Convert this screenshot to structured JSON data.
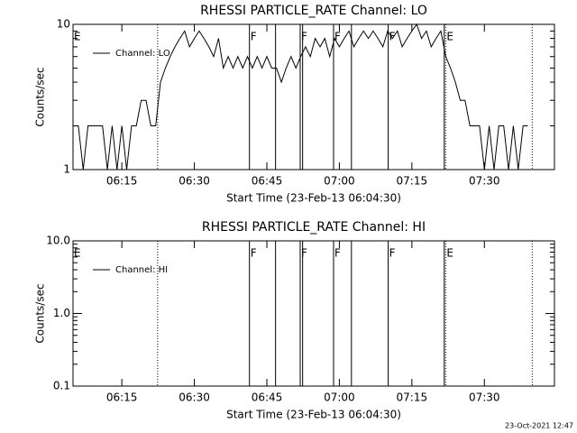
{
  "chart_data": [
    {
      "type": "line",
      "title": "RHESSI PARTICLE_RATE Channel: LO",
      "xlabel": "Start Time (23-Feb-13 06:04:30)",
      "ylabel": "Counts/sec",
      "log_y": true,
      "legend": "upper left",
      "color": "#000000",
      "xlim": [
        4.9,
        104.5
      ],
      "xticks": [
        {
          "value": 15,
          "label": "06:15"
        },
        {
          "value": 30,
          "label": "06:30"
        },
        {
          "value": 45,
          "label": "06:45"
        },
        {
          "value": 60,
          "label": "07:00"
        },
        {
          "value": 75,
          "label": "07:15"
        },
        {
          "value": 90,
          "label": "07:30"
        }
      ],
      "ylim": [
        1,
        10
      ],
      "yticks": [
        1,
        10
      ],
      "vlines": [
        {
          "x": 22.4,
          "style": "dotted"
        },
        {
          "x": 41.4,
          "style": "solid"
        },
        {
          "x": 46.8,
          "style": "solid"
        },
        {
          "x": 51.9,
          "style": "solid"
        },
        {
          "x": 52.4,
          "style": "solid"
        },
        {
          "x": 58.8,
          "style": "solid"
        },
        {
          "x": 62.5,
          "style": "solid"
        },
        {
          "x": 70.1,
          "style": "solid"
        },
        {
          "x": 81.7,
          "style": "solid"
        },
        {
          "x": 82.0,
          "style": "dotted"
        },
        {
          "x": 99.9,
          "style": "dotted"
        }
      ],
      "annotations": [
        {
          "x": 4.9,
          "text": "E"
        },
        {
          "x": 41.4,
          "text": "F"
        },
        {
          "x": 51.9,
          "text": "F"
        },
        {
          "x": 58.8,
          "text": "F"
        },
        {
          "x": 70.1,
          "text": "F"
        },
        {
          "x": 82.0,
          "text": "E"
        }
      ],
      "series": [
        {
          "name": "Channel: LO",
          "color": "#000000",
          "x": [
            5,
            6,
            7,
            8,
            9,
            10,
            11,
            12,
            13,
            14,
            15,
            16,
            17,
            18,
            19,
            20,
            21,
            22,
            23,
            24,
            25,
            26,
            27,
            28,
            29,
            30,
            31,
            32,
            33,
            34,
            35,
            36,
            37,
            38,
            39,
            40,
            41,
            42,
            43,
            44,
            45,
            46,
            47,
            48,
            49,
            50,
            51,
            52,
            53,
            54,
            55,
            56,
            57,
            58,
            59,
            60,
            61,
            62,
            63,
            64,
            65,
            66,
            67,
            68,
            69,
            70,
            71,
            72,
            73,
            74,
            75,
            76,
            77,
            78,
            79,
            80,
            81,
            82,
            83,
            84,
            85,
            86,
            87,
            88,
            89,
            90,
            91,
            92,
            93,
            94,
            95,
            96,
            97,
            98,
            99
          ],
          "values": [
            2,
            2,
            1,
            2,
            2,
            2,
            2,
            1,
            2,
            1,
            2,
            1,
            2,
            2,
            3,
            3,
            2,
            2,
            4,
            5,
            6,
            7,
            8,
            9,
            7,
            8,
            9,
            8,
            7,
            6,
            8,
            5,
            6,
            5,
            6,
            5,
            6,
            5,
            6,
            5,
            6,
            5,
            5,
            4,
            5,
            6,
            5,
            6,
            7,
            6,
            8,
            7,
            8,
            6,
            8,
            7,
            8,
            9,
            7,
            8,
            9,
            8,
            9,
            8,
            7,
            9,
            8,
            9,
            7,
            8,
            9,
            10,
            8,
            9,
            7,
            8,
            9,
            6,
            5,
            4,
            3,
            3,
            2,
            2,
            2,
            1,
            2,
            1,
            2,
            2,
            1,
            2,
            1,
            2,
            2
          ]
        }
      ]
    },
    {
      "type": "line",
      "title": "RHESSI PARTICLE_RATE Channel: HI",
      "xlabel": "Start Time (23-Feb-13 06:04:30)",
      "ylabel": "Counts/sec",
      "log_y": true,
      "legend": "upper left",
      "color": "#000000",
      "xlim": [
        4.9,
        104.5
      ],
      "xticks": [
        {
          "value": 15,
          "label": "06:15"
        },
        {
          "value": 30,
          "label": "06:30"
        },
        {
          "value": 45,
          "label": "06:45"
        },
        {
          "value": 60,
          "label": "07:00"
        },
        {
          "value": 75,
          "label": "07:15"
        },
        {
          "value": 90,
          "label": "07:30"
        }
      ],
      "ylim": [
        0.1,
        10
      ],
      "yticks": [
        0.1,
        {
          "value": 1,
          "label": "1.0"
        },
        {
          "value": 10,
          "label": "10.0"
        }
      ],
      "vlines": [
        {
          "x": 22.4,
          "style": "dotted"
        },
        {
          "x": 41.4,
          "style": "solid"
        },
        {
          "x": 46.8,
          "style": "solid"
        },
        {
          "x": 51.9,
          "style": "solid"
        },
        {
          "x": 52.4,
          "style": "solid"
        },
        {
          "x": 58.8,
          "style": "solid"
        },
        {
          "x": 62.5,
          "style": "solid"
        },
        {
          "x": 70.1,
          "style": "solid"
        },
        {
          "x": 81.7,
          "style": "solid"
        },
        {
          "x": 82.0,
          "style": "dotted"
        },
        {
          "x": 99.9,
          "style": "dotted"
        }
      ],
      "annotations": [
        {
          "x": 4.9,
          "text": "E"
        },
        {
          "x": 41.4,
          "text": "F"
        },
        {
          "x": 51.9,
          "text": "F"
        },
        {
          "x": 58.8,
          "text": "F"
        },
        {
          "x": 70.1,
          "text": "F"
        },
        {
          "x": 82.0,
          "text": "E"
        }
      ],
      "series": [
        {
          "name": "Channel: HI",
          "color": "#000000",
          "x": [],
          "values": []
        }
      ]
    }
  ],
  "footer": "23-Oct-2021 12:47"
}
